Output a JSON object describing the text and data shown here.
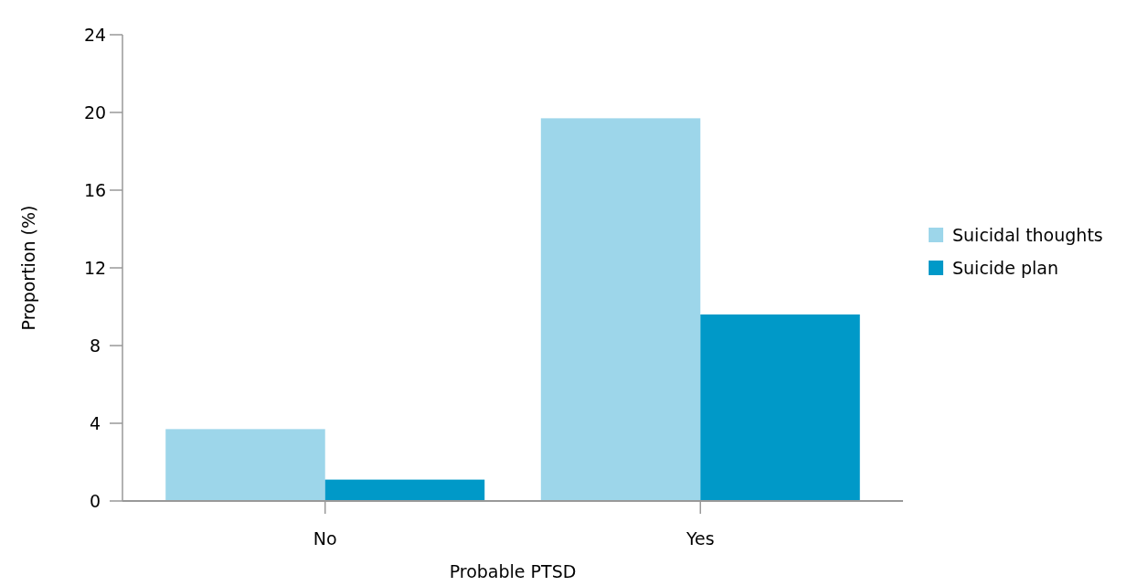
{
  "chart_data": {
    "type": "bar",
    "xlabel": "Probable PTSD",
    "ylabel": "Proportion (%)",
    "categories": [
      "No",
      "Yes"
    ],
    "series": [
      {
        "name": "Suicidal thoughts",
        "color": "#9dd6ea",
        "values": [
          3.7,
          19.7
        ]
      },
      {
        "name": "Suicide plan",
        "color": "#0099c8",
        "values": [
          1.1,
          9.6
        ]
      }
    ],
    "ylim": [
      0,
      24
    ],
    "yticks": [
      0,
      4,
      8,
      12,
      16,
      20,
      24
    ],
    "grid": false,
    "legend": "right"
  }
}
